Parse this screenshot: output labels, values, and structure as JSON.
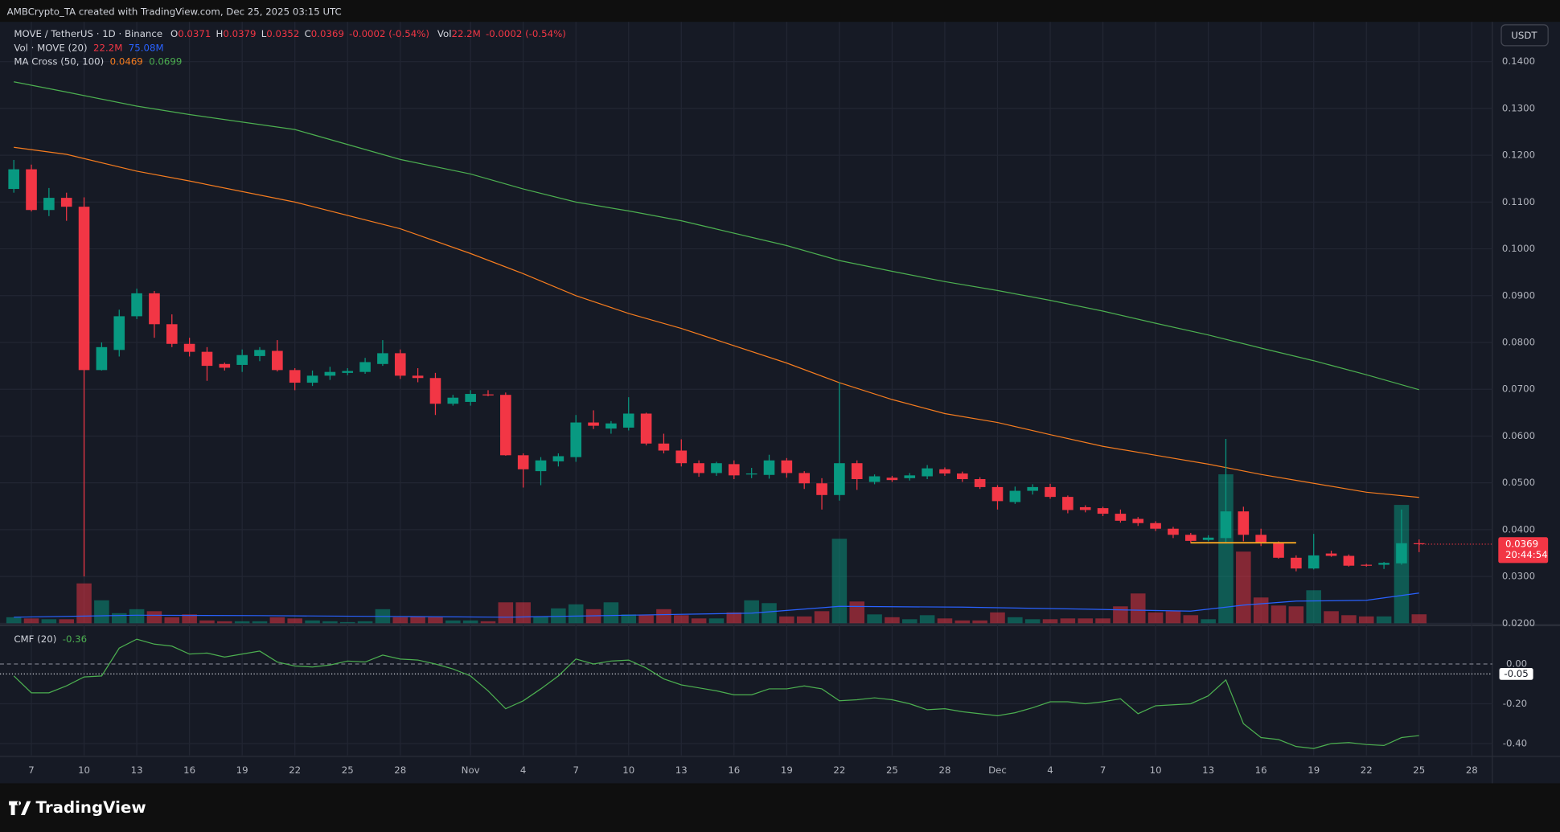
{
  "header": {
    "attribution": "AMBCrypto_TA created with TradingView.com, Dec 25, 2025 03:15 UTC",
    "logo": "TradingView"
  },
  "chart_data": [
    {
      "type": "candlestick",
      "symbol": "MOVE / TetherUS · 1D · Binance",
      "currency": "USDT",
      "ohlc_labels": [
        "O",
        "H",
        "L",
        "C"
      ],
      "change": "-0.0002 (-0.54%)",
      "vol_label": "Vol",
      "vol_change": "-0.0002 (-0.54%)",
      "countdown": "20:44:54",
      "up_color": "#089981",
      "down_color": "#f23645",
      "x": [
        "2025-10-06",
        "2025-10-07",
        "2025-10-08",
        "2025-10-09",
        "2025-10-10",
        "2025-10-11",
        "2025-10-12",
        "2025-10-13",
        "2025-10-14",
        "2025-10-15",
        "2025-10-16",
        "2025-10-17",
        "2025-10-18",
        "2025-10-19",
        "2025-10-20",
        "2025-10-21",
        "2025-10-22",
        "2025-10-23",
        "2025-10-24",
        "2025-10-25",
        "2025-10-26",
        "2025-10-27",
        "2025-10-28",
        "2025-10-29",
        "2025-10-30",
        "2025-10-31",
        "2025-11-01",
        "2025-11-02",
        "2025-11-03",
        "2025-11-04",
        "2025-11-05",
        "2025-11-06",
        "2025-11-07",
        "2025-11-08",
        "2025-11-09",
        "2025-11-10",
        "2025-11-11",
        "2025-11-12",
        "2025-11-13",
        "2025-11-14",
        "2025-11-15",
        "2025-11-16",
        "2025-11-17",
        "2025-11-18",
        "2025-11-19",
        "2025-11-20",
        "2025-11-21",
        "2025-11-22",
        "2025-11-23",
        "2025-11-24",
        "2025-11-25",
        "2025-11-26",
        "2025-11-27",
        "2025-11-28",
        "2025-11-29",
        "2025-11-30",
        "2025-12-01",
        "2025-12-02",
        "2025-12-03",
        "2025-12-04",
        "2025-12-05",
        "2025-12-06",
        "2025-12-07",
        "2025-12-08",
        "2025-12-09",
        "2025-12-10",
        "2025-12-11",
        "2025-12-12",
        "2025-12-13",
        "2025-12-14",
        "2025-12-15",
        "2025-12-16",
        "2025-12-17",
        "2025-12-18",
        "2025-12-19",
        "2025-12-20",
        "2025-12-21",
        "2025-12-22",
        "2025-12-23",
        "2025-12-24",
        "2025-12-25"
      ],
      "open": [
        0.1128,
        0.117,
        0.1083,
        0.1109,
        0.109,
        0.0741,
        0.0784,
        0.0856,
        0.0905,
        0.0839,
        0.0797,
        0.078,
        0.0754,
        0.0752,
        0.0771,
        0.0782,
        0.0741,
        0.0714,
        0.0729,
        0.0735,
        0.0737,
        0.0754,
        0.0777,
        0.0729,
        0.0724,
        0.0669,
        0.0673,
        0.0689,
        0.0688,
        0.0559,
        0.0525,
        0.0546,
        0.0555,
        0.0629,
        0.0616,
        0.0618,
        0.0648,
        0.0584,
        0.0569,
        0.0542,
        0.0521,
        0.054,
        0.0518,
        0.0517,
        0.0548,
        0.0521,
        0.0499,
        0.0474,
        0.0542,
        0.0502,
        0.0511,
        0.051,
        0.0514,
        0.0529,
        0.052,
        0.0508,
        0.0491,
        0.0459,
        0.0483,
        0.0491,
        0.047,
        0.0448,
        0.0446,
        0.0434,
        0.0423,
        0.0414,
        0.0402,
        0.0389,
        0.0378,
        0.0382,
        0.0439,
        0.0389,
        0.0372,
        0.034,
        0.0317,
        0.0349,
        0.0344,
        0.0325,
        0.0325,
        0.0328,
        0.0371
      ],
      "high": [
        0.119,
        0.118,
        0.113,
        0.112,
        0.111,
        0.08,
        0.087,
        0.0915,
        0.091,
        0.086,
        0.081,
        0.079,
        0.0757,
        0.0785,
        0.079,
        0.0805,
        0.0745,
        0.074,
        0.0748,
        0.0745,
        0.0767,
        0.0805,
        0.0785,
        0.0745,
        0.0735,
        0.0688,
        0.0698,
        0.0698,
        0.0693,
        0.0563,
        0.0555,
        0.0563,
        0.0645,
        0.0655,
        0.0632,
        0.0683,
        0.065,
        0.0605,
        0.0593,
        0.0548,
        0.0545,
        0.0548,
        0.0532,
        0.056,
        0.0553,
        0.0525,
        0.051,
        0.0715,
        0.0548,
        0.0518,
        0.0515,
        0.0521,
        0.0538,
        0.0533,
        0.0524,
        0.0512,
        0.0495,
        0.0492,
        0.0497,
        0.0498,
        0.0473,
        0.0452,
        0.0449,
        0.0443,
        0.0427,
        0.0418,
        0.0406,
        0.0393,
        0.0388,
        0.0594,
        0.0449,
        0.0402,
        0.0375,
        0.0345,
        0.0391,
        0.0355,
        0.0347,
        0.0327,
        0.0331,
        0.0443,
        0.0379
      ],
      "low": [
        0.112,
        0.108,
        0.107,
        0.106,
        0.03,
        0.074,
        0.077,
        0.085,
        0.081,
        0.079,
        0.077,
        0.0718,
        0.074,
        0.0737,
        0.076,
        0.0738,
        0.0698,
        0.0707,
        0.072,
        0.073,
        0.0733,
        0.075,
        0.0722,
        0.0715,
        0.0645,
        0.0665,
        0.0665,
        0.0685,
        0.0558,
        0.049,
        0.0495,
        0.0535,
        0.0545,
        0.0615,
        0.0605,
        0.0612,
        0.058,
        0.0563,
        0.0535,
        0.0513,
        0.0515,
        0.0508,
        0.051,
        0.0509,
        0.0511,
        0.0487,
        0.0443,
        0.0462,
        0.0485,
        0.0497,
        0.0502,
        0.0505,
        0.0508,
        0.0515,
        0.0502,
        0.0487,
        0.0443,
        0.0455,
        0.0475,
        0.0466,
        0.0435,
        0.0437,
        0.0429,
        0.0415,
        0.0408,
        0.0397,
        0.0382,
        0.0371,
        0.0375,
        0.0372,
        0.0375,
        0.0365,
        0.0338,
        0.0311,
        0.0315,
        0.0342,
        0.0321,
        0.0321,
        0.0316,
        0.0325,
        0.0352
      ],
      "close": [
        0.117,
        0.1083,
        0.1109,
        0.109,
        0.0741,
        0.079,
        0.0856,
        0.0905,
        0.0839,
        0.0797,
        0.078,
        0.075,
        0.0746,
        0.0773,
        0.0784,
        0.0741,
        0.0714,
        0.0729,
        0.0737,
        0.0739,
        0.0758,
        0.0777,
        0.0729,
        0.0724,
        0.0669,
        0.0682,
        0.069,
        0.0688,
        0.0559,
        0.0529,
        0.0548,
        0.0557,
        0.0629,
        0.0622,
        0.0627,
        0.0648,
        0.0584,
        0.0569,
        0.0542,
        0.0521,
        0.0542,
        0.0516,
        0.052,
        0.0548,
        0.0521,
        0.0499,
        0.0474,
        0.0542,
        0.0508,
        0.0514,
        0.0506,
        0.0516,
        0.0531,
        0.052,
        0.0508,
        0.0491,
        0.0461,
        0.0483,
        0.0491,
        0.047,
        0.0442,
        0.0442,
        0.0434,
        0.0419,
        0.0414,
        0.0402,
        0.0389,
        0.0376,
        0.0383,
        0.0439,
        0.0389,
        0.0372,
        0.034,
        0.0317,
        0.0345,
        0.0344,
        0.0323,
        0.0323,
        0.0329,
        0.0371,
        0.0369
      ],
      "xlim": [
        "2025-10-05T16:00Z",
        "2025-12-29T00:00Z"
      ],
      "xticks": [
        {
          "value": "2025-10-07",
          "label": "7"
        },
        {
          "value": "2025-10-10",
          "label": "10"
        },
        {
          "value": "2025-10-13",
          "label": "13"
        },
        {
          "value": "2025-10-16",
          "label": "16"
        },
        {
          "value": "2025-10-19",
          "label": "19"
        },
        {
          "value": "2025-10-22",
          "label": "22"
        },
        {
          "value": "2025-10-25",
          "label": "25"
        },
        {
          "value": "2025-10-28",
          "label": "28"
        },
        {
          "value": "2025-11-01",
          "label": "Nov"
        },
        {
          "value": "2025-11-04",
          "label": "4"
        },
        {
          "value": "2025-11-07",
          "label": "7"
        },
        {
          "value": "2025-11-10",
          "label": "10"
        },
        {
          "value": "2025-11-13",
          "label": "13"
        },
        {
          "value": "2025-11-16",
          "label": "16"
        },
        {
          "value": "2025-11-19",
          "label": "19"
        },
        {
          "value": "2025-11-22",
          "label": "22"
        },
        {
          "value": "2025-11-25",
          "label": "25"
        },
        {
          "value": "2025-11-28",
          "label": "28"
        },
        {
          "value": "2025-12-01",
          "label": "Dec"
        },
        {
          "value": "2025-12-04",
          "label": "4"
        },
        {
          "value": "2025-12-07",
          "label": "7"
        },
        {
          "value": "2025-12-10",
          "label": "10"
        },
        {
          "value": "2025-12-13",
          "label": "13"
        },
        {
          "value": "2025-12-16",
          "label": "16"
        },
        {
          "value": "2025-12-19",
          "label": "19"
        },
        {
          "value": "2025-12-22",
          "label": "22"
        },
        {
          "value": "2025-12-25",
          "label": "25"
        },
        {
          "value": "2025-12-28",
          "label": "28"
        }
      ],
      "ylim": [
        0.02,
        0.1485
      ],
      "yticks": [
        {
          "value": 0.02,
          "label": "0.0200"
        },
        {
          "value": 0.03,
          "label": "0.0300"
        },
        {
          "value": 0.04,
          "label": "0.0400"
        },
        {
          "value": 0.05,
          "label": "0.0500"
        },
        {
          "value": 0.06,
          "label": "0.0600"
        },
        {
          "value": 0.07,
          "label": "0.0700"
        },
        {
          "value": 0.08,
          "label": "0.0800"
        },
        {
          "value": 0.09,
          "label": "0.0900"
        },
        {
          "value": 0.1,
          "label": "0.1000"
        },
        {
          "value": 0.11,
          "label": "0.1100"
        },
        {
          "value": 0.12,
          "label": "0.1200"
        },
        {
          "value": 0.13,
          "label": "0.1300"
        },
        {
          "value": 0.14,
          "label": "0.1400"
        }
      ],
      "grid": true,
      "volume": {
        "label": "Vol · MOVE (20)",
        "last_label": "22.2M",
        "ylim": [
          0,
          1494
        ],
        "opacity": 0.5,
        "values": [
          15,
          12,
          10,
          10,
          99,
          57,
          25,
          35,
          30,
          15,
          22,
          7,
          5,
          5,
          5,
          15,
          12,
          7,
          5,
          3,
          5,
          35,
          15,
          17,
          15,
          7,
          7,
          5,
          52,
          52,
          17,
          37,
          47,
          35,
          52,
          22,
          20,
          35,
          20,
          12,
          12,
          27,
          57,
          50,
          17,
          17,
          30,
          210,
          54,
          22,
          15,
          10,
          20,
          12,
          7,
          7,
          27,
          15,
          10,
          10,
          12,
          12,
          12,
          42,
          74,
          27,
          30,
          20,
          10,
          370,
          178,
          64,
          44,
          42,
          82,
          30,
          20,
          17,
          17,
          294,
          22.2
        ],
        "ma": {
          "color": "#2962ff",
          "last_label": "75.08M",
          "x": [
            "2025-10-06",
            "2025-10-13",
            "2025-10-20",
            "2025-10-27",
            "2025-11-03",
            "2025-11-10",
            "2025-11-17",
            "2025-11-22",
            "2025-11-29",
            "2025-12-06",
            "2025-12-12",
            "2025-12-15",
            "2025-12-18",
            "2025-12-22",
            "2025-12-25"
          ],
          "values": [
            15,
            20,
            19,
            17,
            15,
            20,
            25,
            42,
            40,
            35,
            30,
            45,
            55,
            57,
            75.08
          ]
        }
      },
      "ma_cross": {
        "label": "MA Cross (50, 100)",
        "x": [
          "2025-10-06",
          "2025-10-09",
          "2025-10-13",
          "2025-10-16",
          "2025-10-22",
          "2025-10-28",
          "2025-11-01",
          "2025-11-04",
          "2025-11-07",
          "2025-11-10",
          "2025-11-13",
          "2025-11-19",
          "2025-11-22",
          "2025-11-25",
          "2025-11-28",
          "2025-12-01",
          "2025-12-04",
          "2025-12-07",
          "2025-12-10",
          "2025-12-13",
          "2025-12-16",
          "2025-12-19",
          "2025-12-22",
          "2025-12-25"
        ],
        "series": [
          {
            "color": "#f57c1f",
            "values": [
              0.1217,
              0.1202,
              0.1166,
              0.1145,
              0.11,
              0.1043,
              0.099,
              0.0947,
              0.09,
              0.0862,
              0.083,
              0.0756,
              0.0714,
              0.0678,
              0.0648,
              0.0629,
              0.0603,
              0.0578,
              0.0559,
              0.054,
              0.0518,
              0.0499,
              0.048,
              0.0469
            ]
          },
          {
            "color": "#4caf50",
            "values": [
              0.1357,
              0.1335,
              0.1305,
              0.1287,
              0.1255,
              0.1191,
              0.116,
              0.1128,
              0.11,
              0.1081,
              0.106,
              0.1007,
              0.0975,
              0.0952,
              0.093,
              0.0911,
              0.089,
              0.0867,
              0.0841,
              0.0816,
              0.0788,
              0.0761,
              0.0731,
              0.0699
            ]
          }
        ]
      },
      "hsegment": {
        "color": "#f5a623",
        "from": "2025-12-12",
        "to": "2025-12-18",
        "value": 0.0372
      }
    },
    {
      "type": "line",
      "title": "CMF (20)",
      "color": "#4caf50",
      "x": [
        "2025-10-06",
        "2025-10-07",
        "2025-10-08",
        "2025-10-09",
        "2025-10-10",
        "2025-10-11",
        "2025-10-12",
        "2025-10-13",
        "2025-10-14",
        "2025-10-15",
        "2025-10-16",
        "2025-10-17",
        "2025-10-18",
        "2025-10-19",
        "2025-10-20",
        "2025-10-21",
        "2025-10-22",
        "2025-10-23",
        "2025-10-24",
        "2025-10-25",
        "2025-10-26",
        "2025-10-27",
        "2025-10-28",
        "2025-10-29",
        "2025-10-30",
        "2025-10-31",
        "2025-11-01",
        "2025-11-02",
        "2025-11-03",
        "2025-11-04",
        "2025-11-05",
        "2025-11-06",
        "2025-11-07",
        "2025-11-08",
        "2025-11-09",
        "2025-11-10",
        "2025-11-11",
        "2025-11-12",
        "2025-11-13",
        "2025-11-14",
        "2025-11-15",
        "2025-11-16",
        "2025-11-17",
        "2025-11-18",
        "2025-11-19",
        "2025-11-20",
        "2025-11-21",
        "2025-11-22",
        "2025-11-23",
        "2025-11-24",
        "2025-11-25",
        "2025-11-26",
        "2025-11-27",
        "2025-11-28",
        "2025-11-29",
        "2025-11-30",
        "2025-12-01",
        "2025-12-02",
        "2025-12-03",
        "2025-12-04",
        "2025-12-05",
        "2025-12-06",
        "2025-12-07",
        "2025-12-08",
        "2025-12-09",
        "2025-12-10",
        "2025-12-11",
        "2025-12-12",
        "2025-12-13",
        "2025-12-14",
        "2025-12-15",
        "2025-12-16",
        "2025-12-17",
        "2025-12-18",
        "2025-12-19",
        "2025-12-20",
        "2025-12-21",
        "2025-12-22",
        "2025-12-23",
        "2025-12-24",
        "2025-12-25"
      ],
      "values": [
        -0.06,
        -0.145,
        -0.145,
        -0.11,
        -0.065,
        -0.06,
        0.08,
        0.125,
        0.1,
        0.09,
        0.05,
        0.055,
        0.035,
        0.05,
        0.065,
        0.01,
        -0.01,
        -0.015,
        -0.005,
        0.015,
        0.01,
        0.045,
        0.025,
        0.02,
        0,
        -0.025,
        -0.06,
        -0.135,
        -0.225,
        -0.185,
        -0.125,
        -0.06,
        0.025,
        0,
        0.015,
        0.02,
        -0.02,
        -0.075,
        -0.105,
        -0.12,
        -0.135,
        -0.155,
        -0.155,
        -0.125,
        -0.125,
        -0.11,
        -0.125,
        -0.185,
        -0.18,
        -0.17,
        -0.18,
        -0.2,
        -0.23,
        -0.225,
        -0.24,
        -0.25,
        -0.26,
        -0.245,
        -0.22,
        -0.19,
        -0.19,
        -0.2,
        -0.19,
        -0.175,
        -0.25,
        -0.21,
        -0.205,
        -0.2,
        -0.16,
        -0.08,
        -0.3,
        -0.37,
        -0.38,
        -0.415,
        -0.425,
        -0.4,
        -0.395,
        -0.405,
        -0.41,
        -0.37,
        -0.36
      ],
      "ylim": [
        -0.46,
        0.19
      ],
      "yticks": [
        {
          "value": 0,
          "label": "0.00"
        },
        {
          "value": -0.2,
          "label": "-0.20"
        },
        {
          "value": -0.4,
          "label": "-0.40"
        }
      ],
      "hline": -0.05
    }
  ]
}
